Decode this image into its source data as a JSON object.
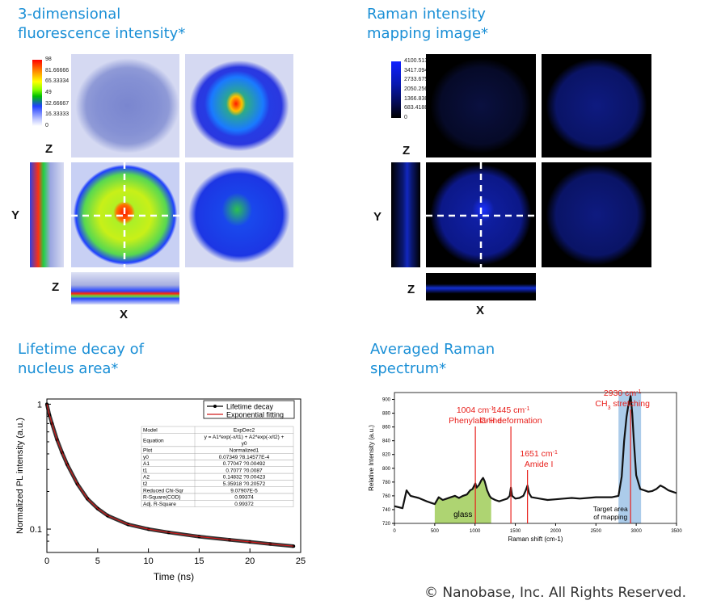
{
  "panels": {
    "fluor_title": "3-dimensional\nfluorescence intensity*",
    "raman_map_title": "Raman intensity\nmapping image*",
    "lifetime_title": "Lifetime decay of\nnucleus area*",
    "raman_spec_title": "Averaged Raman\nspectrum*"
  },
  "fluor_colorbar": {
    "ticks": [
      "98",
      "81.66666",
      "65.33334",
      "49",
      "32.66667",
      "16.33333",
      "0"
    ],
    "axis_labels": {
      "z": "Z",
      "y": "Y",
      "z2": "Z",
      "x": "X"
    }
  },
  "raman_colorbar": {
    "ticks": [
      "4100.513",
      "3417.094",
      "2733.675",
      "2050.256",
      "1366.838",
      "683.4188",
      "0"
    ],
    "axis_labels": {
      "z": "Z",
      "y": "Y",
      "z2": "Z",
      "x": "X"
    }
  },
  "copyright": "© Nanobase, Inc. All Rights Reserved.",
  "colors": {
    "title": "#1a8fd6",
    "fit": "#d11a1a",
    "raman_red": "#e8201c",
    "glass": "#a5cf63",
    "ch_band": "#9ec3e6"
  },
  "chart_data": [
    {
      "type": "line",
      "title": "",
      "xlabel": "Time (ns)",
      "ylabel": "Normalized PL intensity (a.u.)",
      "xlim": [
        0,
        25
      ],
      "ylim": [
        0.065,
        1.1
      ],
      "yscale": "log",
      "xticks": [
        "0",
        "5",
        "10",
        "15",
        "20",
        "25"
      ],
      "yticks": [
        "1",
        "0.1"
      ],
      "legend_position": "top-right",
      "series": [
        {
          "name": "Lifetime decay",
          "style": "black markers",
          "model": "ExpDec2"
        },
        {
          "name": "Exponential fitting",
          "style": "red line",
          "model": "ExpDec2"
        }
      ],
      "x": [
        0,
        0.25,
        0.5,
        1,
        1.5,
        2,
        3,
        4,
        5,
        6,
        8,
        10,
        12,
        15,
        18,
        20,
        22,
        24.3
      ],
      "y": [
        1.0,
        0.82,
        0.7,
        0.52,
        0.41,
        0.33,
        0.23,
        0.175,
        0.146,
        0.128,
        0.109,
        0.1,
        0.094,
        0.087,
        0.082,
        0.079,
        0.076,
        0.073
      ],
      "fit_table": {
        "rows": [
          [
            "Model",
            "ExpDec2"
          ],
          [
            "Equation",
            "y = A1*exp(-x/t1) + A2*exp(-x/t2) + y0"
          ],
          [
            "Plot",
            "Normalized1"
          ],
          [
            "y0",
            "0.07349 ?8.14577E-4"
          ],
          [
            "A1",
            "0.77047 ?0.00492"
          ],
          [
            "t1",
            "0.7077 ?0.0087"
          ],
          [
            "A2",
            "0.14832 ?0.00423"
          ],
          [
            "t2",
            "5.35918 ?0.20572"
          ],
          [
            "Reduced Chi-Sqr",
            "9.07907E-5"
          ],
          [
            "R-Square(COD)",
            "0.99374"
          ],
          [
            "Adj. R-Square",
            "0.99372"
          ]
        ]
      }
    },
    {
      "type": "line",
      "title": "",
      "xlabel": "Raman shift (cm-1)",
      "ylabel": "Relative Intensity (a.u.)",
      "xlim": [
        0,
        3500
      ],
      "ylim": [
        720,
        910
      ],
      "xticks": [
        "0",
        "500",
        "1000",
        "1500",
        "2000",
        "2500",
        "3000",
        "3500"
      ],
      "yticks": [
        "720",
        "740",
        "760",
        "780",
        "800",
        "820",
        "840",
        "860",
        "880",
        "900"
      ],
      "series": [
        {
          "name": "",
          "x": [
            0,
            100,
            150,
            200,
            300,
            400,
            450,
            500,
            550,
            600,
            650,
            700,
            750,
            800,
            850,
            900,
            940,
            970,
            1004,
            1020,
            1050,
            1080,
            1100,
            1120,
            1150,
            1180,
            1200,
            1250,
            1300,
            1350,
            1400,
            1430,
            1445,
            1460,
            1500,
            1550,
            1600,
            1630,
            1651,
            1670,
            1700,
            1800,
            1900,
            2000,
            2100,
            2200,
            2300,
            2400,
            2500,
            2600,
            2700,
            2780,
            2820,
            2850,
            2880,
            2900,
            2930,
            2950,
            2970,
            3000,
            3050,
            3100,
            3150,
            3200,
            3250,
            3300,
            3350,
            3400,
            3450,
            3500
          ],
          "y": [
            745,
            742,
            768,
            760,
            757,
            752,
            750,
            748,
            758,
            754,
            756,
            758,
            760,
            757,
            760,
            762,
            768,
            770,
            778,
            772,
            776,
            783,
            786,
            781,
            768,
            760,
            757,
            754,
            752,
            754,
            756,
            760,
            772,
            760,
            756,
            757,
            760,
            768,
            775,
            764,
            758,
            756,
            754,
            755,
            756,
            757,
            756,
            757,
            758,
            758,
            758,
            760,
            788,
            840,
            875,
            890,
            905,
            880,
            840,
            790,
            770,
            768,
            766,
            767,
            770,
            775,
            772,
            768,
            766,
            764
          ]
        }
      ],
      "annotations": [
        {
          "x": 1004,
          "label": "1004 cm",
          "sup": "-1",
          "label2": "Phenylalanine"
        },
        {
          "x": 1445,
          "label": "1445 cm",
          "sup": "-1",
          "label2": "C-H deformation"
        },
        {
          "x": 1651,
          "label": "1651 cm",
          "sup": "-1",
          "label2": "Amide I"
        },
        {
          "x": 2930,
          "label": "2930 cm",
          "sup": "-1",
          "label2": "CH",
          "label2_sub": "3",
          "label2_rest": " stretching"
        }
      ],
      "regions": [
        {
          "from": 500,
          "to": 1200,
          "label": "glass"
        },
        {
          "from": 2780,
          "to": 3060,
          "label": "Target area\nof mapping"
        }
      ]
    }
  ]
}
